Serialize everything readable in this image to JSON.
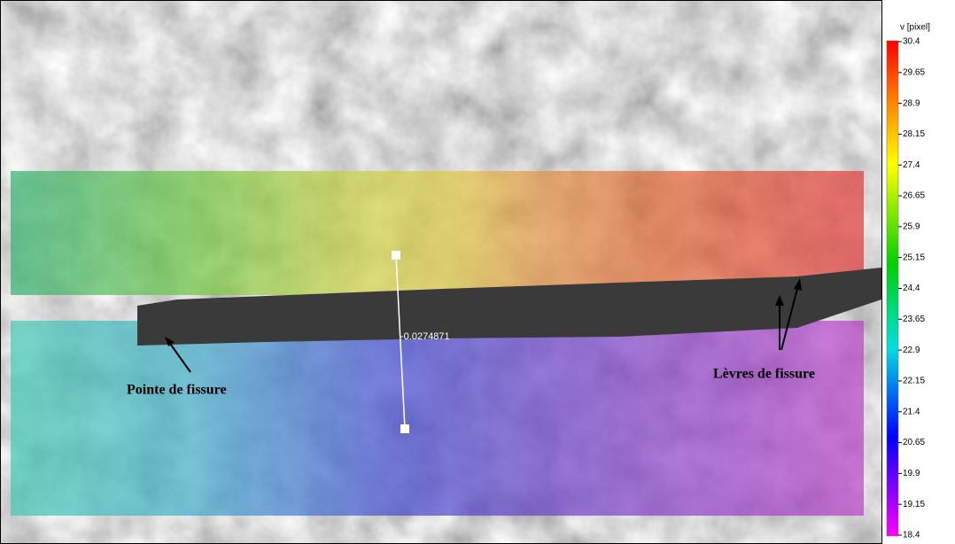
{
  "colorbar": {
    "title": "v [pixel]",
    "ticks": [
      30.4,
      29.65,
      28.9,
      28.15,
      27.4,
      26.65,
      25.9,
      25.15,
      24.4,
      23.65,
      22.9,
      22.15,
      21.4,
      20.65,
      19.9,
      19.15,
      18.4
    ]
  },
  "measurement": {
    "value": -0.0274871
  },
  "annotations": {
    "crack_tip": "Pointe de fissure",
    "crack_lips": "Lèvres de fissure"
  }
}
